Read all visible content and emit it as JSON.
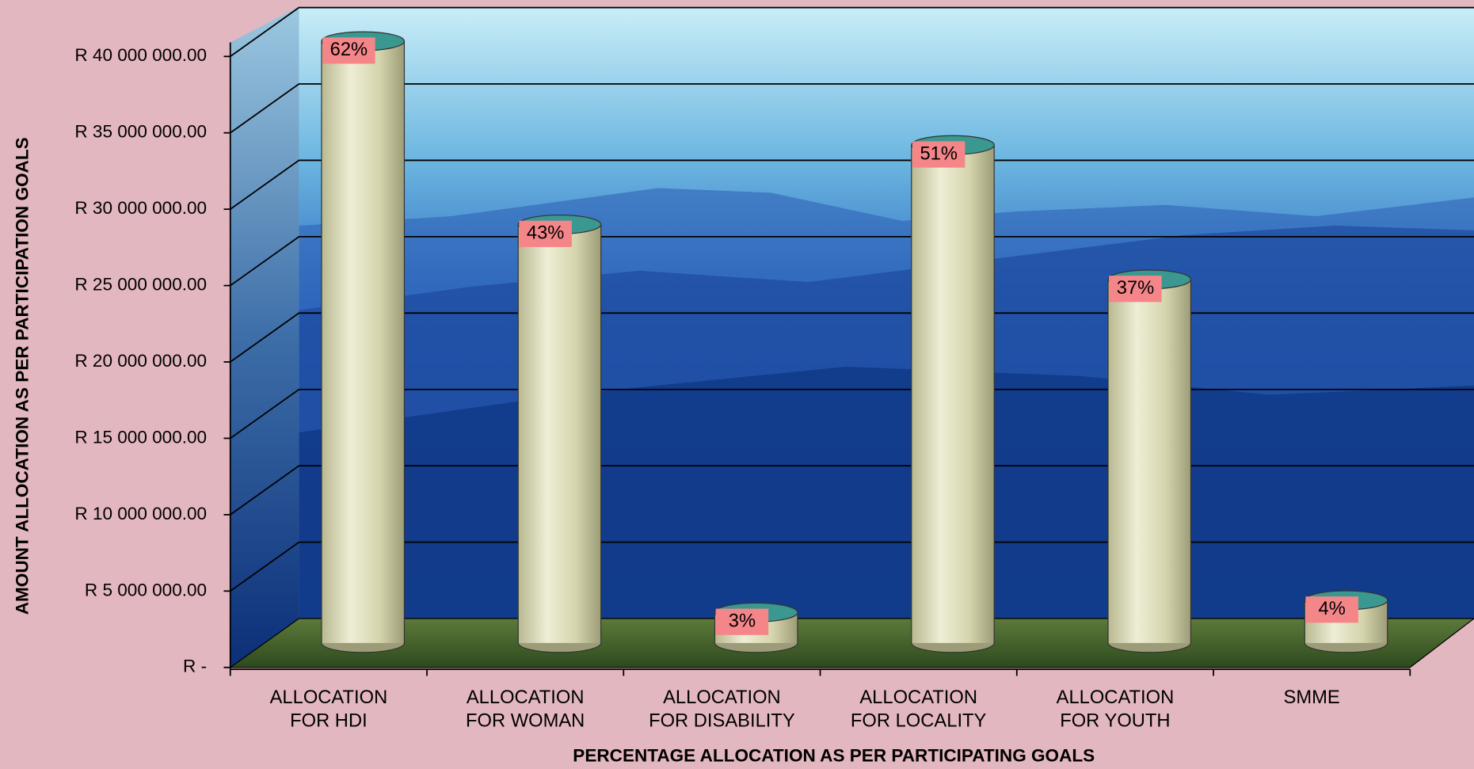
{
  "chart_data": {
    "type": "bar",
    "categories": [
      "ALLOCATION\nFOR HDI",
      "ALLOCATION\nFOR WOMAN",
      "ALLOCATION\nFOR DISABILITY",
      "ALLOCATION\nFOR LOCALITY",
      "ALLOCATION\nFOR YOUTH",
      "SMME"
    ],
    "values": [
      39400000,
      27400000,
      2000000,
      32600000,
      23800000,
      2800000
    ],
    "percentages": [
      "62%",
      "43%",
      "3%",
      "51%",
      "37%",
      "4%"
    ],
    "color": "#d9d8b0",
    "ylim": [
      0,
      40000000
    ],
    "yticks": [
      {
        "value": 0,
        "label": "R -"
      },
      {
        "value": 5000000,
        "label": "R 5 000 000.00"
      },
      {
        "value": 10000000,
        "label": "R 10 000 000.00"
      },
      {
        "value": 15000000,
        "label": "R 15 000 000.00"
      },
      {
        "value": 20000000,
        "label": "R 20 000 000.00"
      },
      {
        "value": 25000000,
        "label": "R 25 000 000.00"
      },
      {
        "value": 30000000,
        "label": "R 30 000 000.00"
      },
      {
        "value": 35000000,
        "label": "R 35 000 000.00"
      },
      {
        "value": 40000000,
        "label": "R 40 000 000.00"
      }
    ],
    "x_label": "PERCENTAGE ALLOCATION AS PER PARTICIPATING GOALS",
    "y_label": "AMOUNT ALLOCATION AS PER PARTICIPATION GOALS",
    "grid": true
  }
}
